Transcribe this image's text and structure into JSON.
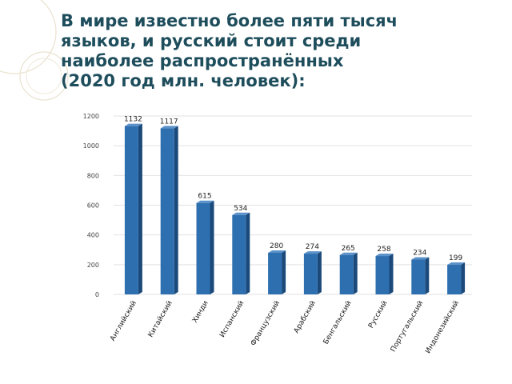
{
  "slide": {
    "title_lines": [
      "В мире известно более пяти тысяч",
      "языков, и русский стоит среди",
      "наиболее распространённых",
      "(2020 год  млн. человек):"
    ]
  },
  "colors": {
    "title": "#1e4d5c",
    "bar_front": "#2e6fb0",
    "bar_side": "#1b4a7a",
    "bar_top": "#5b92c9",
    "grid": "#e2e2e2",
    "decoration": "#e9e2cf"
  },
  "chart_data": {
    "type": "bar",
    "title": "",
    "xlabel": "",
    "ylabel": "",
    "categories": [
      "Английский",
      "Китайский",
      "Хинди",
      "Испанский",
      "Французский",
      "Арабский",
      "Бенгальский",
      "Русский",
      "Португальский",
      "Индонезийский"
    ],
    "values": [
      1132,
      1117,
      615,
      534,
      280,
      274,
      265,
      258,
      234,
      199
    ],
    "ylim": [
      0,
      1200
    ],
    "yticks": [
      0,
      200,
      400,
      600,
      800,
      1000,
      1200
    ],
    "grid": true,
    "legend": "none"
  }
}
